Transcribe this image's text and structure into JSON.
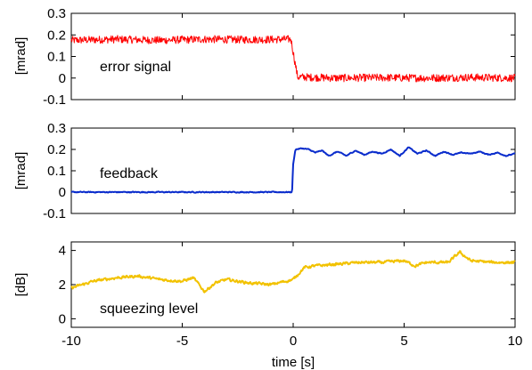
{
  "chart_data": [
    {
      "type": "line",
      "annotation": "error signal",
      "ylabel": "[mrad]",
      "xlim": [
        -10,
        10
      ],
      "ylim": [
        -0.1,
        0.3
      ],
      "yticks": [
        "-0.1",
        "0",
        "0.1",
        "0.2",
        "0.3"
      ],
      "yticks_values": [
        -0.1,
        0,
        0.1,
        0.2,
        0.3
      ],
      "color": "#ff0000",
      "series": [
        {
          "x": [
            -10,
            -8,
            -6,
            -4,
            -2,
            -0.1,
            0.05,
            0.2,
            2,
            4,
            6,
            8,
            10
          ],
          "y": [
            0.175,
            0.18,
            0.175,
            0.18,
            0.178,
            0.18,
            0.09,
            0.005,
            0.0,
            0.002,
            0.0,
            0.003,
            0.0
          ],
          "noise": 0.018
        }
      ]
    },
    {
      "type": "line",
      "annotation": "feedback",
      "ylabel": "[mrad]",
      "xlim": [
        -10,
        10
      ],
      "ylim": [
        -0.1,
        0.3
      ],
      "yticks": [
        "-0.1",
        "0",
        "0.1",
        "0.2",
        "0.3"
      ],
      "yticks_values": [
        -0.1,
        0,
        0.1,
        0.2,
        0.3
      ],
      "color": "#0a2ccc",
      "series": [
        {
          "x": [
            -10,
            -0.05,
            0.0,
            0.1,
            0.4,
            0.7,
            1.0,
            1.3,
            1.6,
            2.0,
            2.4,
            2.8,
            3.2,
            3.6,
            4.0,
            4.4,
            4.8,
            5.2,
            5.6,
            6.0,
            6.4,
            6.8,
            7.2,
            7.6,
            8.0,
            8.4,
            8.8,
            9.2,
            9.6,
            10
          ],
          "y": [
            0,
            0,
            0.13,
            0.2,
            0.205,
            0.2,
            0.185,
            0.195,
            0.17,
            0.19,
            0.17,
            0.195,
            0.175,
            0.19,
            0.18,
            0.2,
            0.17,
            0.21,
            0.18,
            0.195,
            0.17,
            0.19,
            0.175,
            0.185,
            0.18,
            0.19,
            0.175,
            0.185,
            0.17,
            0.18
          ],
          "noise": 0.004
        }
      ]
    },
    {
      "type": "line",
      "annotation": "squeezing level",
      "ylabel": "[dB]",
      "xlabel": "time [s]",
      "xlim": [
        -10,
        10
      ],
      "ylim": [
        -0.5,
        4.5
      ],
      "yticks": [
        "0",
        "2",
        "4"
      ],
      "yticks_values": [
        0,
        2,
        4
      ],
      "xticks": [
        "-10",
        "-5",
        "0",
        "5",
        "10"
      ],
      "xticks_values": [
        -10,
        -5,
        0,
        5,
        10
      ],
      "color": "#f2c200",
      "series": [
        {
          "x": [
            -10,
            -9,
            -8,
            -7,
            -6,
            -5,
            -4.5,
            -4,
            -3.5,
            -3,
            -2,
            -1,
            0,
            0.5,
            1,
            2,
            3,
            4,
            5,
            5.5,
            6,
            7,
            7.5,
            8,
            9,
            10
          ],
          "y": [
            1.8,
            2.2,
            2.4,
            2.5,
            2.3,
            2.2,
            2.4,
            1.6,
            2.1,
            2.3,
            2.1,
            2.0,
            2.3,
            3.0,
            3.1,
            3.2,
            3.3,
            3.3,
            3.4,
            3.1,
            3.3,
            3.3,
            3.9,
            3.4,
            3.3,
            3.3
          ],
          "noise": 0.14
        }
      ]
    }
  ]
}
